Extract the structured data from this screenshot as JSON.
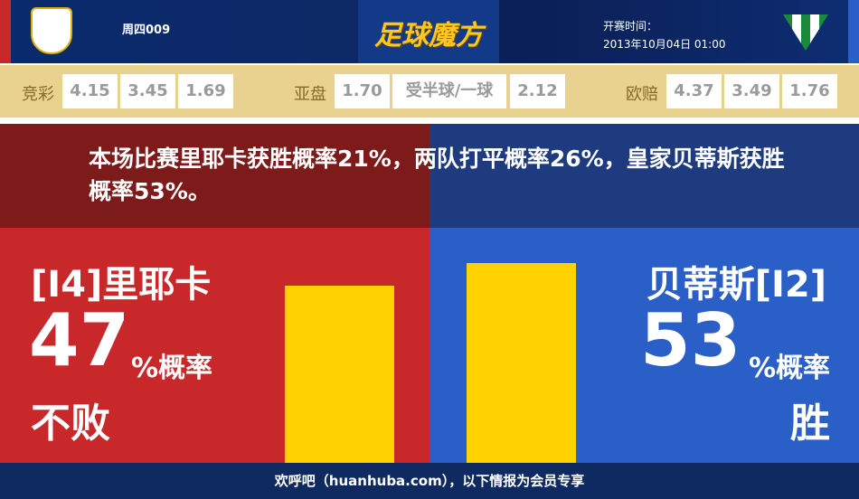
{
  "header": {
    "match_no": "周四009",
    "logo_text": "足球魔方",
    "kickoff_label": "开赛时间：",
    "kickoff_time": "2013年10月04日 01:00",
    "home_crest_icon": "rijeka-crest-icon",
    "away_crest_icon": "real-betis-crest-icon"
  },
  "odds": {
    "jingcai": {
      "label": "竞彩",
      "values": [
        "4.15",
        "3.45",
        "1.69"
      ]
    },
    "yapan": {
      "label": "亚盘",
      "values": [
        "1.70",
        "受半球/一球",
        "2.12"
      ]
    },
    "oupei": {
      "label": "欧赔",
      "values": [
        "4.37",
        "3.49",
        "1.76"
      ]
    }
  },
  "summary": "本场比赛里耶卡获胜概率21%，两队打平概率26%，皇家贝蒂斯获胜概率53%。",
  "home": {
    "team": "[I4]里耶卡",
    "percent": "47",
    "percent_label": "%概率",
    "result": "不败",
    "bar_value": 47
  },
  "away": {
    "team": "贝蒂斯[I2]",
    "percent": "53",
    "percent_label": "%概率",
    "result": "胜",
    "bar_value": 53
  },
  "footer": "欢呼吧（huanhuba.com），以下情报为会员专享",
  "colors": {
    "home_red": "#c8282a",
    "away_blue": "#2a5fc8",
    "bar_yellow": "#ffd200",
    "odds_bg": "#e9d18f"
  }
}
